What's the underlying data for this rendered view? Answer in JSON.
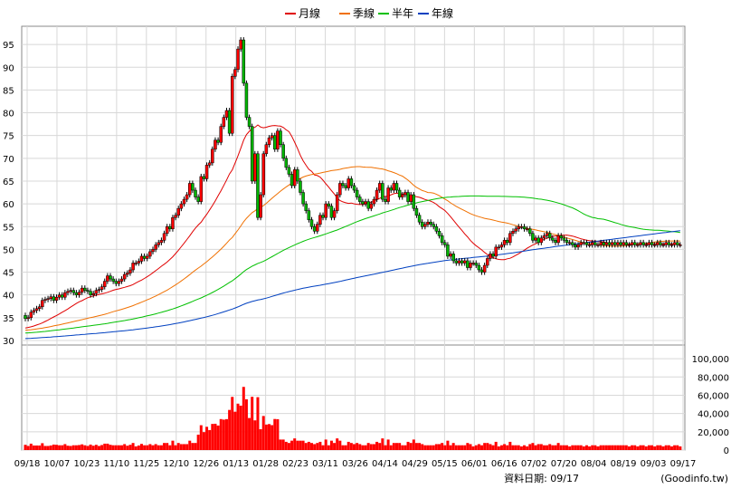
{
  "legend": [
    {
      "label": "月線",
      "color": "#e00000"
    },
    {
      "label": "季線",
      "color": "#f07000"
    },
    {
      "label": "半年",
      "color": "#00c000"
    },
    {
      "label": "年線",
      "color": "#0040c0"
    }
  ],
  "footer": {
    "date_label": "資料日期: 09/17",
    "source": "(Goodinfo.tw)"
  },
  "chart_data": {
    "type": "candlestick",
    "price_axis": {
      "min": 29,
      "max": 99,
      "ticks": [
        30,
        35,
        40,
        45,
        50,
        55,
        60,
        65,
        70,
        75,
        80,
        85,
        90,
        95
      ]
    },
    "volume_axis": {
      "min": 0,
      "max": 115000,
      "ticks": [
        0,
        20000,
        40000,
        60000,
        80000,
        100000
      ],
      "tick_labels": [
        "0",
        "20,000",
        "40,000",
        "60,000",
        "80,000",
        "100,000"
      ]
    },
    "x_ticks": [
      "09/18",
      "10/07",
      "10/23",
      "11/10",
      "11/25",
      "12/10",
      "12/26",
      "01/13",
      "01/28",
      "02/23",
      "03/11",
      "03/26",
      "04/14",
      "04/29",
      "05/15",
      "06/01",
      "06/16",
      "07/02",
      "07/20",
      "08/04",
      "08/19",
      "09/03",
      "09/17"
    ],
    "colors": {
      "up": "#ff0000",
      "down": "#00b400",
      "volume": "#ff0000"
    },
    "close": [
      35.0,
      35.4,
      35.6,
      36.0,
      36.3,
      36.6,
      37.0,
      37.4,
      37.8,
      38.1,
      38.4,
      38.7,
      39.0,
      39.3,
      39.5,
      39.8,
      40.0,
      40.2,
      40.3,
      40.4,
      40.5,
      40.5,
      40.6,
      40.7,
      40.8,
      40.9,
      41.0,
      41.1,
      41.2,
      41.3,
      41.5,
      41.7,
      41.8,
      42.0,
      42.2,
      42.3,
      42.5,
      42.8,
      43.1,
      43.4,
      43.8,
      44.2,
      44.6,
      45.0,
      45.5,
      46.0,
      46.5,
      47.0,
      47.6,
      48.2,
      48.8,
      49.5,
      50.2,
      51.0,
      51.8,
      52.6,
      53.5,
      54.4,
      55.3,
      56.3,
      57.3,
      58.3,
      59.4,
      60.5,
      61.6,
      62.8,
      64.0,
      65.5,
      67.0,
      68.5,
      70.0,
      71.5,
      73.0,
      74.5,
      75.5,
      76.5,
      77.0,
      76.5,
      76.0,
      75.5,
      75.5,
      76.0,
      77.0,
      78.0,
      76.5,
      75.0,
      72.0,
      70.0,
      68.5,
      67.5,
      67.0,
      66.5,
      66.0,
      65.5,
      64.5,
      63.0,
      61.5,
      60.0,
      58.5,
      57.0,
      56.0,
      55.3,
      55.0,
      55.3,
      56.0,
      57.0,
      57.8,
      58.5,
      59.3,
      60.0,
      60.5,
      61.0,
      61.3,
      61.5,
      61.8,
      62.0,
      62.3,
      62.6,
      63.0,
      63.5,
      64.0,
      64.5,
      65.0,
      65.5,
      66.0,
      66.3,
      66.5,
      66.3,
      66.0,
      65.5,
      65.0,
      64.5,
      64.0,
      63.5,
      63.0,
      62.5,
      61.8,
      61.0,
      60.0,
      59.0,
      58.0,
      56.5,
      55.0,
      54.0,
      52.5,
      51.0,
      49.5,
      48.5,
      47.5,
      47.0,
      46.5,
      46.0,
      46.0,
      45.8,
      45.5,
      45.5,
      45.8,
      46.0,
      46.0,
      46.0,
      46.2,
      46.5,
      47.0,
      47.5,
      48.0,
      48.5,
      49.0,
      49.5,
      50.0,
      50.5,
      51.0,
      51.3,
      51.6,
      52.0,
      52.3,
      52.5,
      52.6,
      52.7,
      52.7,
      52.6,
      52.5,
      52.4,
      52.3,
      52.2,
      52.1,
      52.0,
      51.8,
      51.6,
      51.3,
      51.0,
      50.8,
      50.6,
      50.5,
      50.4,
      50.3,
      50.2,
      50.1,
      50.0,
      50.0,
      50.0,
      50.0,
      50.0,
      50.0,
      50.0,
      50.0,
      50.0,
      50.0,
      50.0,
      50.0,
      50.0,
      50.0,
      50.0,
      50.0,
      50.0,
      50.0,
      50.0,
      50.0,
      50.0,
      50.0,
      50.0,
      50.0,
      50.0,
      50.0,
      50.0,
      50.0,
      50.0,
      50.0,
      50.0,
      50.0,
      50.0,
      50.0,
      50.0
    ],
    "open": [
      35.5,
      34.8,
      35.0,
      36.2,
      36.6,
      37.0,
      37.4,
      38.8,
      39.0,
      39.2,
      39.6,
      38.8,
      39.5,
      40.0,
      39.5,
      40.5,
      40.8,
      41.0,
      40.5,
      40.0,
      40.6,
      41.5,
      41.0,
      40.8,
      40.0,
      40.3,
      41.0,
      41.2,
      41.8,
      43.0,
      44.2,
      43.5,
      43.0,
      42.5,
      43.0,
      43.5,
      44.5,
      44.8,
      45.5,
      47.0,
      47.0,
      47.4,
      48.5,
      48.0,
      48.5,
      49.5,
      50.0,
      51.0,
      51.5,
      52.0,
      53.5,
      55.0,
      54.5,
      57.0,
      57.5,
      59.0,
      60.0,
      61.0,
      62.0,
      64.5,
      63.0,
      61.5,
      60.5,
      66.0,
      65.5,
      68.5,
      69.0,
      72.0,
      74.0,
      73.5,
      77.0,
      79.0,
      80.5,
      75.5,
      88.0,
      89.5,
      94.0,
      96.0,
      86.5,
      79.0,
      77.0,
      65.0,
      71.0,
      57.0,
      62.0,
      71.0,
      73.0,
      74.5,
      75.0,
      72.0,
      76.0,
      73.0,
      70.0,
      68.0,
      66.5,
      64.0,
      67.5,
      65.0,
      62.5,
      60.0,
      58.5,
      56.5,
      55.0,
      54.0,
      55.5,
      57.5,
      57.0,
      60.0,
      59.5,
      57.0,
      58.5,
      62.0,
      64.5,
      64.0,
      63.5,
      65.5,
      64.0,
      63.0,
      61.5,
      60.5,
      60.0,
      60.5,
      59.0,
      60.0,
      61.0,
      63.0,
      64.5,
      61.0,
      60.5,
      63.5,
      63.0,
      64.5,
      63.0,
      61.5,
      62.0,
      62.5,
      60.5,
      62.0,
      59.0,
      57.5,
      56.0,
      55.0,
      55.5,
      56.0,
      55.5,
      55.0,
      54.0,
      53.0,
      51.5,
      51.0,
      48.5,
      49.0,
      47.5,
      47.0,
      47.5,
      47.0,
      47.5,
      46.0,
      47.0,
      47.0,
      46.5,
      45.5,
      45.0,
      46.5,
      48.0,
      49.0,
      48.5,
      50.5,
      50.5,
      51.0,
      52.0,
      51.5,
      53.5,
      54.0,
      54.5,
      55.0,
      55.0,
      54.5,
      54.5,
      53.5,
      52.0,
      52.5,
      51.5,
      52.5,
      53.0,
      53.5,
      52.5,
      52.0,
      51.5,
      53.0,
      52.5,
      52.0,
      51.5,
      51.5,
      51.0,
      50.5,
      51.0,
      51.5,
      51.5,
      51.0,
      51.0,
      51.5,
      51.0,
      51.0,
      51.5,
      51.0,
      51.5,
      51.0,
      51.5,
      51.0,
      51.5,
      51.0,
      51.5,
      51.0,
      51.0,
      51.5,
      51.0,
      51.0,
      51.5,
      51.0,
      51.0,
      51.5,
      51.0,
      51.0,
      51.5,
      51.0,
      51.0,
      51.5,
      51.0,
      51.0,
      51.5,
      51.0
    ]
  }
}
